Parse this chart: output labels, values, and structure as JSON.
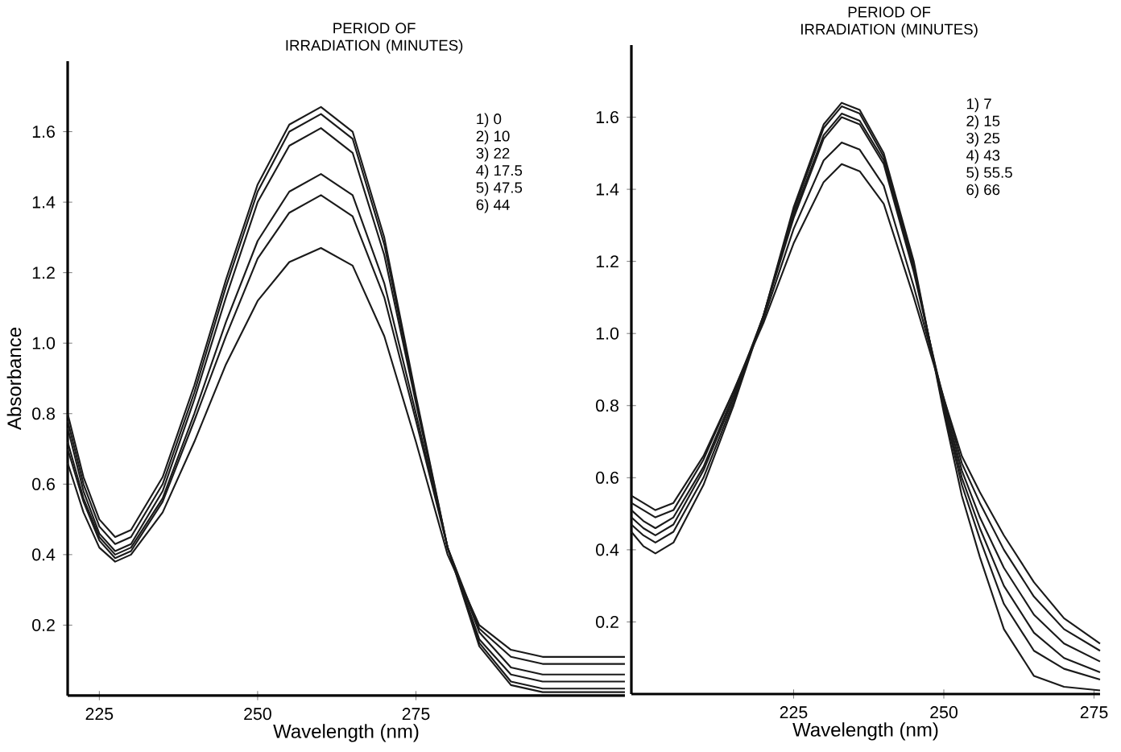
{
  "chart_data": [
    {
      "type": "line",
      "xlabel": "Wavelength (nm)",
      "ylabel": "Absorbance",
      "legend_title": "PERIOD OF IRRADIATION (MINUTES)",
      "annotations": [
        "1)   0",
        "2)   10",
        "3)   22",
        "4)   17.5",
        "5)   47.5",
        "6)   44"
      ],
      "x": [
        220,
        222.5,
        225,
        227.5,
        230,
        235,
        240,
        245,
        250,
        255,
        260,
        265,
        270,
        275,
        280,
        285,
        290,
        295,
        300,
        308
      ],
      "xlim": [
        220,
        308
      ],
      "ylim": [
        0,
        1.8
      ],
      "xticks": [
        225,
        250,
        275
      ],
      "yticks": [
        {
          "value": 0.2,
          "label": "0.2"
        },
        {
          "value": 0.4,
          "label": "0.4"
        },
        {
          "value": 0.6,
          "label": "0.6"
        },
        {
          "value": 0.8,
          "label": "0.8"
        },
        {
          "value": 1.0,
          "label": "1.0"
        },
        {
          "value": 1.2,
          "label": "1.2"
        },
        {
          "value": 1.4,
          "label": "1.4"
        },
        {
          "value": 1.6,
          "label": "1.6"
        }
      ],
      "series": [
        {
          "color": "#1a1a1a",
          "values": [
            0.8,
            0.62,
            0.5,
            0.45,
            0.47,
            0.62,
            0.88,
            1.18,
            1.45,
            1.62,
            1.67,
            1.6,
            1.3,
            0.85,
            0.42,
            0.14,
            0.03,
            0.01,
            0.01,
            0.01
          ]
        },
        {
          "color": "#1a1a1a",
          "values": [
            0.78,
            0.6,
            0.48,
            0.43,
            0.45,
            0.6,
            0.86,
            1.16,
            1.43,
            1.6,
            1.65,
            1.58,
            1.28,
            0.84,
            0.42,
            0.15,
            0.04,
            0.02,
            0.02,
            0.02
          ]
        },
        {
          "color": "#1a1a1a",
          "values": [
            0.76,
            0.58,
            0.46,
            0.41,
            0.43,
            0.58,
            0.84,
            1.13,
            1.4,
            1.56,
            1.61,
            1.54,
            1.25,
            0.83,
            0.42,
            0.16,
            0.06,
            0.04,
            0.04,
            0.04
          ]
        },
        {
          "color": "#1a1a1a",
          "values": [
            0.72,
            0.56,
            0.45,
            0.4,
            0.42,
            0.56,
            0.8,
            1.06,
            1.29,
            1.43,
            1.48,
            1.42,
            1.17,
            0.8,
            0.42,
            0.18,
            0.08,
            0.06,
            0.06,
            0.06
          ]
        },
        {
          "color": "#1a1a1a",
          "values": [
            0.7,
            0.55,
            0.44,
            0.39,
            0.41,
            0.55,
            0.78,
            1.02,
            1.24,
            1.37,
            1.42,
            1.36,
            1.13,
            0.78,
            0.42,
            0.19,
            0.11,
            0.09,
            0.09,
            0.09
          ]
        },
        {
          "color": "#1a1a1a",
          "values": [
            0.66,
            0.52,
            0.42,
            0.38,
            0.4,
            0.52,
            0.72,
            0.94,
            1.12,
            1.23,
            1.27,
            1.22,
            1.02,
            0.72,
            0.4,
            0.2,
            0.13,
            0.11,
            0.11,
            0.11
          ]
        }
      ]
    },
    {
      "type": "line",
      "xlabel": "Wavelength (nm)",
      "legend_title": "PERIOD OF IRRADIATION (MINUTES)",
      "annotations": [
        "1)   7",
        "2)   15",
        "3)   25",
        "4)   43",
        "5)   55.5",
        "6)   66"
      ],
      "x": [
        198,
        200,
        202,
        205,
        210,
        215,
        220,
        225,
        230,
        233,
        236,
        240,
        245,
        250,
        253,
        256,
        260,
        265,
        270,
        276
      ],
      "xlim": [
        198,
        276
      ],
      "ylim": [
        0,
        1.8
      ],
      "xticks": [
        225,
        250,
        275
      ],
      "yticks": [
        {
          "value": 0.2,
          "label": "0.2"
        },
        {
          "value": 0.4,
          "label": "0.4"
        },
        {
          "value": 0.6,
          "label": "0.6"
        },
        {
          "value": 0.8,
          "label": "0.8"
        },
        {
          "value": 1.0,
          "label": "1.0"
        },
        {
          "value": 1.2,
          "label": "1.2"
        },
        {
          "value": 1.4,
          "label": "1.4"
        },
        {
          "value": 1.6,
          "label": "1.6"
        }
      ],
      "series": [
        {
          "color": "#1a1a1a",
          "values": [
            0.45,
            0.41,
            0.39,
            0.42,
            0.58,
            0.8,
            1.05,
            1.35,
            1.58,
            1.64,
            1.62,
            1.5,
            1.2,
            0.78,
            0.55,
            0.38,
            0.18,
            0.05,
            0.02,
            0.01
          ]
        },
        {
          "color": "#1a1a1a",
          "values": [
            0.47,
            0.44,
            0.42,
            0.45,
            0.6,
            0.81,
            1.05,
            1.34,
            1.57,
            1.63,
            1.61,
            1.49,
            1.19,
            0.79,
            0.58,
            0.43,
            0.25,
            0.12,
            0.07,
            0.04
          ]
        },
        {
          "color": "#1a1a1a",
          "values": [
            0.49,
            0.46,
            0.44,
            0.47,
            0.62,
            0.82,
            1.05,
            1.33,
            1.55,
            1.61,
            1.59,
            1.48,
            1.18,
            0.8,
            0.6,
            0.46,
            0.3,
            0.17,
            0.1,
            0.06
          ]
        },
        {
          "color": "#1a1a1a",
          "values": [
            0.51,
            0.48,
            0.46,
            0.49,
            0.63,
            0.83,
            1.05,
            1.32,
            1.54,
            1.6,
            1.58,
            1.47,
            1.17,
            0.81,
            0.62,
            0.49,
            0.35,
            0.22,
            0.14,
            0.09
          ]
        },
        {
          "color": "#1a1a1a",
          "values": [
            0.53,
            0.51,
            0.49,
            0.51,
            0.65,
            0.84,
            1.04,
            1.29,
            1.48,
            1.53,
            1.51,
            1.41,
            1.13,
            0.82,
            0.64,
            0.53,
            0.4,
            0.27,
            0.18,
            0.12
          ]
        },
        {
          "color": "#1a1a1a",
          "values": [
            0.55,
            0.53,
            0.51,
            0.53,
            0.66,
            0.84,
            1.03,
            1.25,
            1.42,
            1.47,
            1.45,
            1.36,
            1.1,
            0.82,
            0.66,
            0.56,
            0.44,
            0.31,
            0.21,
            0.14
          ]
        }
      ]
    }
  ]
}
